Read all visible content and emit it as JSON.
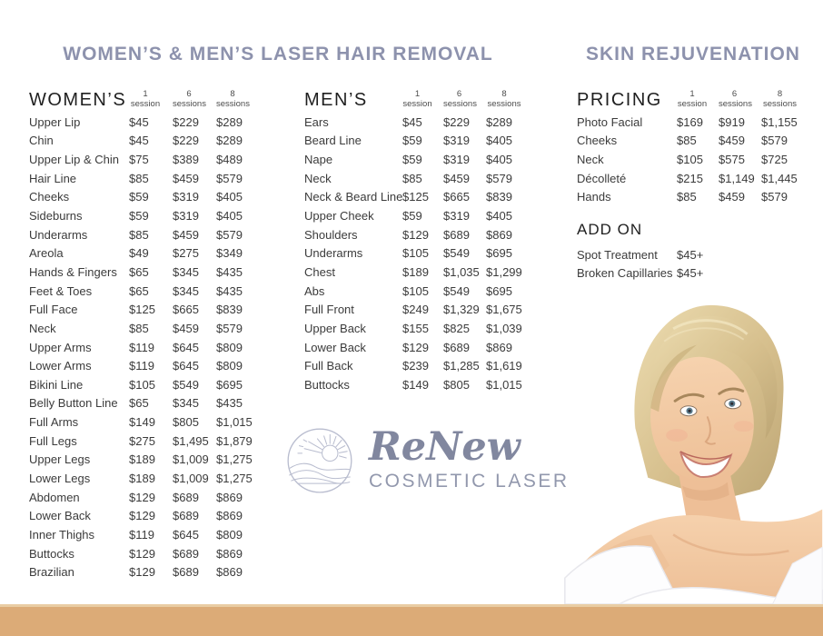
{
  "titles": {
    "hair_removal": "WOMEN’S & MEN’S LASER HAIR REMOVAL",
    "skin_rejuvenation": "SKIN REJUVENATION"
  },
  "session_headers": [
    {
      "num": "1",
      "label": "session"
    },
    {
      "num": "6",
      "label": "sessions"
    },
    {
      "num": "8",
      "label": "sessions"
    }
  ],
  "womens": {
    "title": "WOMEN’S",
    "rows": [
      [
        "Upper Lip",
        "$45",
        "$229",
        "$289"
      ],
      [
        "Chin",
        "$45",
        "$229",
        "$289"
      ],
      [
        "Upper Lip & Chin",
        "$75",
        "$389",
        "$489"
      ],
      [
        "Hair Line",
        "$85",
        "$459",
        "$579"
      ],
      [
        "Cheeks",
        "$59",
        "$319",
        "$405"
      ],
      [
        "Sideburns",
        "$59",
        "$319",
        "$405"
      ],
      [
        "Underarms",
        "$85",
        "$459",
        "$579"
      ],
      [
        "Areola",
        "$49",
        "$275",
        "$349"
      ],
      [
        "Hands & Fingers",
        "$65",
        "$345",
        "$435"
      ],
      [
        "Feet & Toes",
        "$65",
        "$345",
        "$435"
      ],
      [
        "Full Face",
        "$125",
        "$665",
        "$839"
      ],
      [
        "Neck",
        "$85",
        "$459",
        "$579"
      ],
      [
        "Upper Arms",
        "$119",
        "$645",
        "$809"
      ],
      [
        "Lower Arms",
        "$119",
        "$645",
        "$809"
      ],
      [
        "Bikini Line",
        "$105",
        "$549",
        "$695"
      ],
      [
        "Belly Button Line",
        "$65",
        "$345",
        "$435"
      ],
      [
        "Full Arms",
        "$149",
        "$805",
        "$1,015"
      ],
      [
        "Full Legs",
        "$275",
        "$1,495",
        "$1,879"
      ],
      [
        "Upper Legs",
        "$189",
        "$1,009",
        "$1,275"
      ],
      [
        "Lower Legs",
        "$189",
        "$1,009",
        "$1,275"
      ],
      [
        "Abdomen",
        "$129",
        "$689",
        "$869"
      ],
      [
        "Lower Back",
        "$129",
        "$689",
        "$869"
      ],
      [
        "Inner Thighs",
        "$119",
        "$645",
        "$809"
      ],
      [
        "Buttocks",
        "$129",
        "$689",
        "$869"
      ],
      [
        "Brazilian",
        "$129",
        "$689",
        "$869"
      ]
    ]
  },
  "mens": {
    "title": "MEN’S",
    "rows": [
      [
        "Ears",
        "$45",
        "$229",
        "$289"
      ],
      [
        "Beard Line",
        "$59",
        "$319",
        "$405"
      ],
      [
        "Nape",
        "$59",
        "$319",
        "$405"
      ],
      [
        "Neck",
        "$85",
        "$459",
        "$579"
      ],
      [
        "Neck & Beard Line",
        "$125",
        "$665",
        "$839"
      ],
      [
        "Upper Cheek",
        "$59",
        "$319",
        "$405"
      ],
      [
        "Shoulders",
        "$129",
        "$689",
        "$869"
      ],
      [
        "Underarms",
        "$105",
        "$549",
        "$695"
      ],
      [
        "Chest",
        "$189",
        "$1,035",
        "$1,299"
      ],
      [
        "Abs",
        "$105",
        "$549",
        "$695"
      ],
      [
        "Full Front",
        "$249",
        "$1,329",
        "$1,675"
      ],
      [
        "Upper Back",
        "$155",
        "$825",
        "$1,039"
      ],
      [
        "Lower Back",
        "$129",
        "$689",
        "$869"
      ],
      [
        "Full Back",
        "$239",
        "$1,285",
        "$1,619"
      ],
      [
        "Buttocks",
        "$149",
        "$805",
        "$1,015"
      ]
    ]
  },
  "skin_pricing": {
    "title": "PRICING",
    "rows": [
      [
        "Photo Facial",
        "$169",
        "$919",
        "$1,155"
      ],
      [
        "Cheeks",
        "$85",
        "$459",
        "$579"
      ],
      [
        "Neck",
        "$105",
        "$575",
        "$725"
      ],
      [
        "Décolleté",
        "$215",
        "$1,149",
        "$1,445"
      ],
      [
        "Hands",
        "$85",
        "$459",
        "$579"
      ]
    ]
  },
  "add_on": {
    "title": "ADD ON",
    "rows": [
      [
        "Spot Treatment",
        "$45+"
      ],
      [
        "Broken Capillaries",
        "$45+"
      ]
    ]
  },
  "logo": {
    "name": "ReNew",
    "subtitle": "COSMETIC LASER"
  },
  "colors": {
    "accent": "#8d92ad",
    "bar_tan": "#dcab77",
    "logo_purple": "#81879f"
  }
}
